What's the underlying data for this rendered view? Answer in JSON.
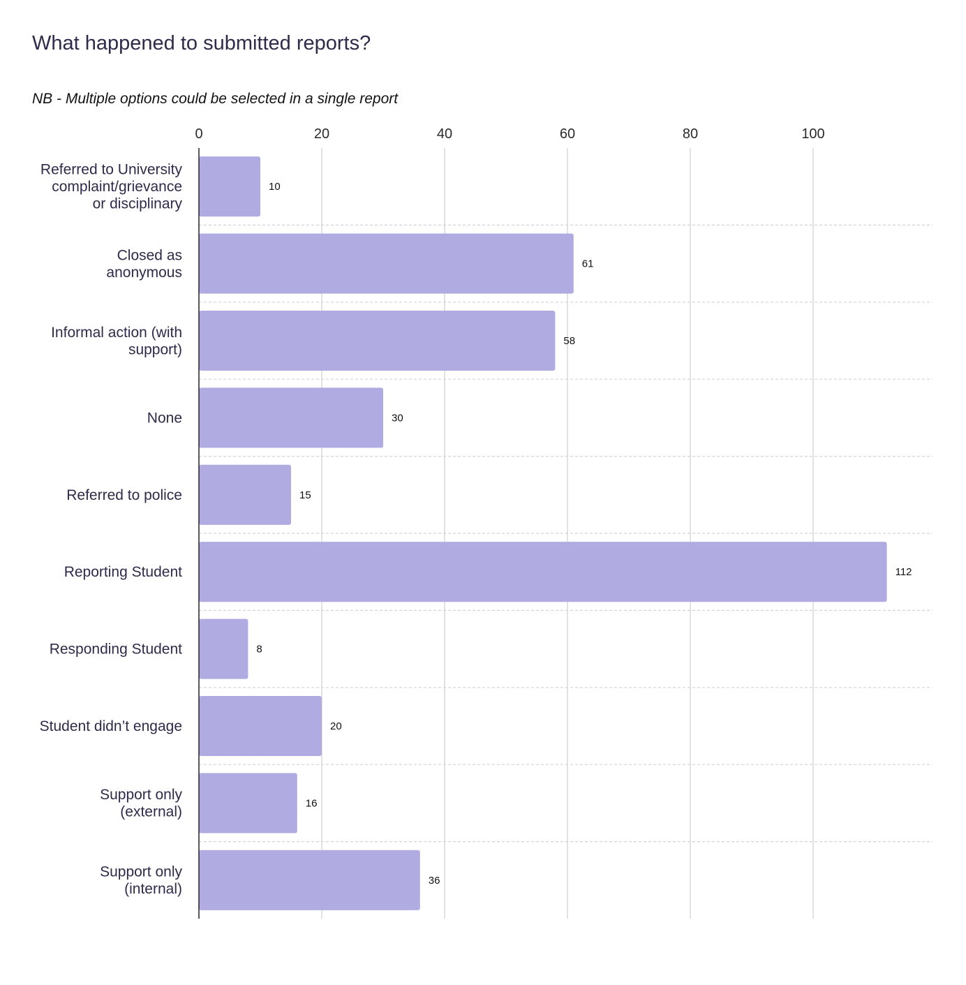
{
  "chart_data": {
    "type": "bar",
    "orientation": "horizontal",
    "title": "What happened to submitted reports?",
    "subtitle": "NB - Multiple options could be selected in a single report",
    "categories": [
      "Referred to University complaint/grievance or disciplinary",
      "Closed as anonymous",
      "Informal action (with support)",
      "None",
      "Referred to police",
      "Reporting Student",
      "Responding Student",
      "Student didn’t engage",
      "Support only (external)",
      "Support only (internal)"
    ],
    "category_lines": [
      [
        "Referred to University",
        "complaint/grievance",
        "or disciplinary"
      ],
      [
        "Closed as",
        "anonymous"
      ],
      [
        "Informal action (with",
        "support)"
      ],
      [
        "None"
      ],
      [
        "Referred to police"
      ],
      [
        "Reporting Student"
      ],
      [
        "Responding Student"
      ],
      [
        "Student didn’t engage"
      ],
      [
        "Support only",
        "(external)"
      ],
      [
        "Support only",
        "(internal)"
      ]
    ],
    "values": [
      10,
      61,
      58,
      30,
      15,
      112,
      8,
      20,
      16,
      36
    ],
    "value_labels": [
      "10",
      "61",
      "58",
      "30",
      "15",
      "112",
      "8",
      "20",
      "16",
      "36"
    ],
    "xticks": [
      0,
      20,
      40,
      60,
      80,
      100
    ],
    "xtick_labels": [
      "0",
      "20",
      "40",
      "60",
      "80",
      "100"
    ],
    "xlim": [
      0,
      119
    ],
    "xaxis_position": "top",
    "grid": true,
    "legend": "none",
    "xlabel": "",
    "ylabel": "",
    "colors": {
      "bar": "#b0ace1",
      "title": "#2e2b4a",
      "gridline": "#d9d9d9",
      "separator": "#d4d4d4",
      "axis": "#222222"
    }
  }
}
